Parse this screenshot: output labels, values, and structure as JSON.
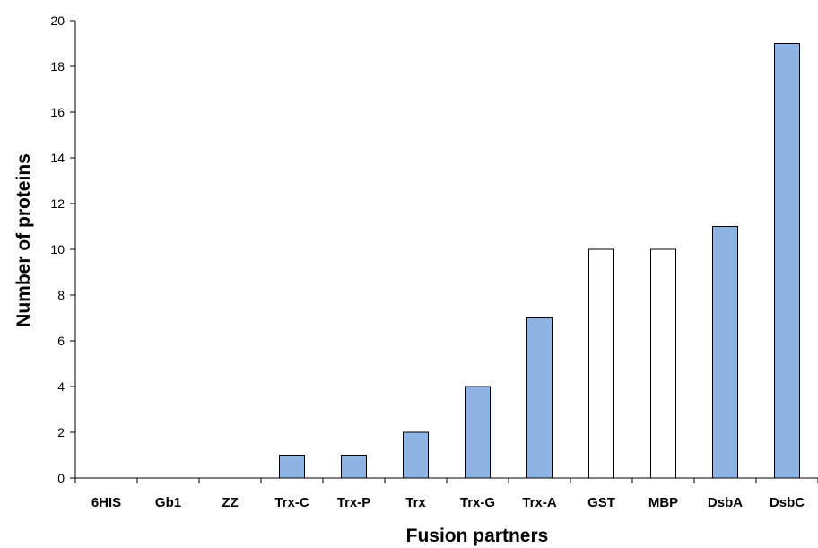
{
  "chart_data": {
    "type": "bar",
    "title": "",
    "xlabel": "Fusion partners",
    "ylabel": "Number of proteins",
    "ylim": [
      0,
      20
    ],
    "yticks": [
      0,
      2,
      4,
      6,
      8,
      10,
      12,
      14,
      16,
      18,
      20
    ],
    "grid": false,
    "legend": "none",
    "categories": [
      "6HIS",
      "Gb1",
      "ZZ",
      "Trx-C",
      "Trx-P",
      "Trx",
      "Trx-G",
      "Trx-A",
      "GST",
      "MBP",
      "DsbA",
      "DsbC"
    ],
    "values": [
      0,
      0,
      0,
      1,
      1,
      2,
      4,
      7,
      10,
      10,
      11,
      19
    ],
    "bar_fill": [
      "blue",
      "blue",
      "blue",
      "blue",
      "blue",
      "blue",
      "blue",
      "blue",
      "white",
      "white",
      "blue",
      "blue"
    ],
    "colors": {
      "blue": "#8eb4e3",
      "white": "#ffffff",
      "outline": "#000000"
    }
  }
}
